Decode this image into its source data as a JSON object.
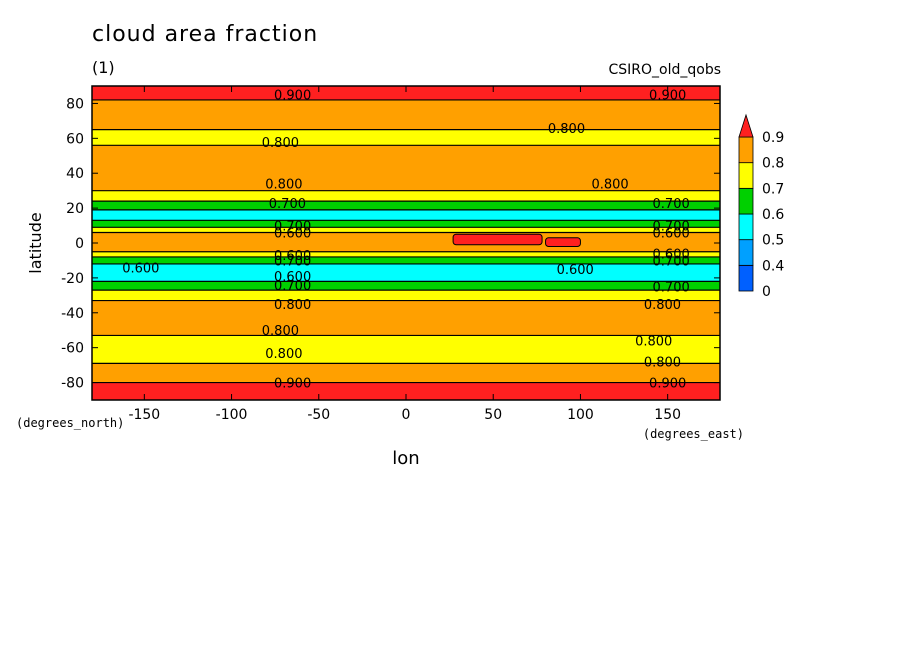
{
  "chart_data": {
    "type": "heatmap",
    "title": "cloud area fraction",
    "units": "(1)",
    "dataset": "CSIRO_old_qobs",
    "xlabel": "lon",
    "ylabel": "latitude",
    "x_units": "(degrees_east)",
    "y_units": "(degrees_north)",
    "xlim": [
      -180,
      180
    ],
    "ylim": [
      -90,
      90
    ],
    "x_ticks": [
      -150,
      -100,
      -50,
      0,
      50,
      100,
      150
    ],
    "y_ticks": [
      80,
      60,
      40,
      20,
      0,
      -20,
      -40,
      -60,
      -80
    ],
    "x_tick_labels": [
      "-150",
      "-100",
      "-50",
      "0",
      "50",
      "100",
      "150"
    ],
    "y_tick_labels": [
      "80",
      "60",
      "40",
      "20",
      "0",
      "-20",
      "-40",
      "-60",
      "-80"
    ],
    "colorbar": {
      "levels": [
        0,
        0.4,
        0.5,
        0.6,
        0.7,
        0.8,
        0.9
      ],
      "labels": [
        "0.9",
        "0.8",
        "0.7",
        "0.6",
        "0.5",
        "0.4",
        "0"
      ],
      "colors": [
        "#0060ff",
        "#00a0ff",
        "#00ffff",
        "#00d000",
        "#ffff00",
        "#ffa000",
        "#ff2020"
      ],
      "extend": "max"
    },
    "zonal_bands": [
      {
        "lat_from": 90,
        "lat_to": 82,
        "level": 0.9
      },
      {
        "lat_from": 82,
        "lat_to": 65,
        "level": 0.8
      },
      {
        "lat_from": 65,
        "lat_to": 56,
        "level": 0.7
      },
      {
        "lat_from": 56,
        "lat_to": 30,
        "level": 0.8
      },
      {
        "lat_from": 30,
        "lat_to": 24,
        "level": 0.7
      },
      {
        "lat_from": 24,
        "lat_to": 19,
        "level": 0.6
      },
      {
        "lat_from": 19,
        "lat_to": 13,
        "level": 0.5
      },
      {
        "lat_from": 13,
        "lat_to": 9,
        "level": 0.6
      },
      {
        "lat_from": 9,
        "lat_to": 6,
        "level": 0.7
      },
      {
        "lat_from": 6,
        "lat_to": -5,
        "level": 0.8
      },
      {
        "lat_from": -5,
        "lat_to": -8,
        "level": 0.7
      },
      {
        "lat_from": -8,
        "lat_to": -12,
        "level": 0.6
      },
      {
        "lat_from": -12,
        "lat_to": -22,
        "level": 0.5
      },
      {
        "lat_from": -22,
        "lat_to": -27,
        "level": 0.6
      },
      {
        "lat_from": -27,
        "lat_to": -33,
        "level": 0.7
      },
      {
        "lat_from": -33,
        "lat_to": -53,
        "level": 0.8
      },
      {
        "lat_from": -53,
        "lat_to": -69,
        "level": 0.7
      },
      {
        "lat_from": -69,
        "lat_to": -80,
        "level": 0.8
      },
      {
        "lat_from": -80,
        "lat_to": -90,
        "level": 0.9
      }
    ],
    "patches": [
      {
        "lon": [
          27,
          78
        ],
        "lat": [
          -1,
          5
        ],
        "level": 0.9
      },
      {
        "lon": [
          80,
          100
        ],
        "lat": [
          -2,
          3
        ],
        "level": 0.9
      }
    ],
    "contour_labels": [
      {
        "text": "0.900",
        "lon": -65,
        "lat": 85
      },
      {
        "text": "0.900",
        "lon": 150,
        "lat": 85
      },
      {
        "text": "0.800",
        "lon": -72,
        "lat": 58
      },
      {
        "text": "0.800",
        "lon": 92,
        "lat": 66
      },
      {
        "text": "0.800",
        "lon": -70,
        "lat": 34
      },
      {
        "text": "0.800",
        "lon": 117,
        "lat": 34
      },
      {
        "text": "0.700",
        "lon": -68,
        "lat": 23
      },
      {
        "text": "0.700",
        "lon": 152,
        "lat": 23
      },
      {
        "text": "0.700",
        "lon": -65,
        "lat": 10
      },
      {
        "text": "0.600",
        "lon": -65,
        "lat": 6
      },
      {
        "text": "0.700",
        "lon": 152,
        "lat": 10
      },
      {
        "text": "0.600",
        "lon": 152,
        "lat": 6
      },
      {
        "text": "0.600",
        "lon": -152,
        "lat": -14
      },
      {
        "text": "0.600",
        "lon": -65,
        "lat": -7
      },
      {
        "text": "0.700",
        "lon": -65,
        "lat": -10
      },
      {
        "text": "0.600",
        "lon": 152,
        "lat": -6
      },
      {
        "text": "0.700",
        "lon": 152,
        "lat": -10
      },
      {
        "text": "0.600",
        "lon": 97,
        "lat": -15
      },
      {
        "text": "0.600",
        "lon": -65,
        "lat": -19
      },
      {
        "text": "0.700",
        "lon": -65,
        "lat": -24
      },
      {
        "text": "0.700",
        "lon": 152,
        "lat": -25
      },
      {
        "text": "0.800",
        "lon": -65,
        "lat": -35
      },
      {
        "text": "0.800",
        "lon": 147,
        "lat": -35
      },
      {
        "text": "0.800",
        "lon": -72,
        "lat": -50
      },
      {
        "text": "0.800",
        "lon": 142,
        "lat": -56
      },
      {
        "text": "0.800",
        "lon": -70,
        "lat": -63
      },
      {
        "text": "0.800",
        "lon": 147,
        "lat": -68
      },
      {
        "text": "0.900",
        "lon": -65,
        "lat": -80
      },
      {
        "text": "0.900",
        "lon": 150,
        "lat": -80
      }
    ]
  }
}
